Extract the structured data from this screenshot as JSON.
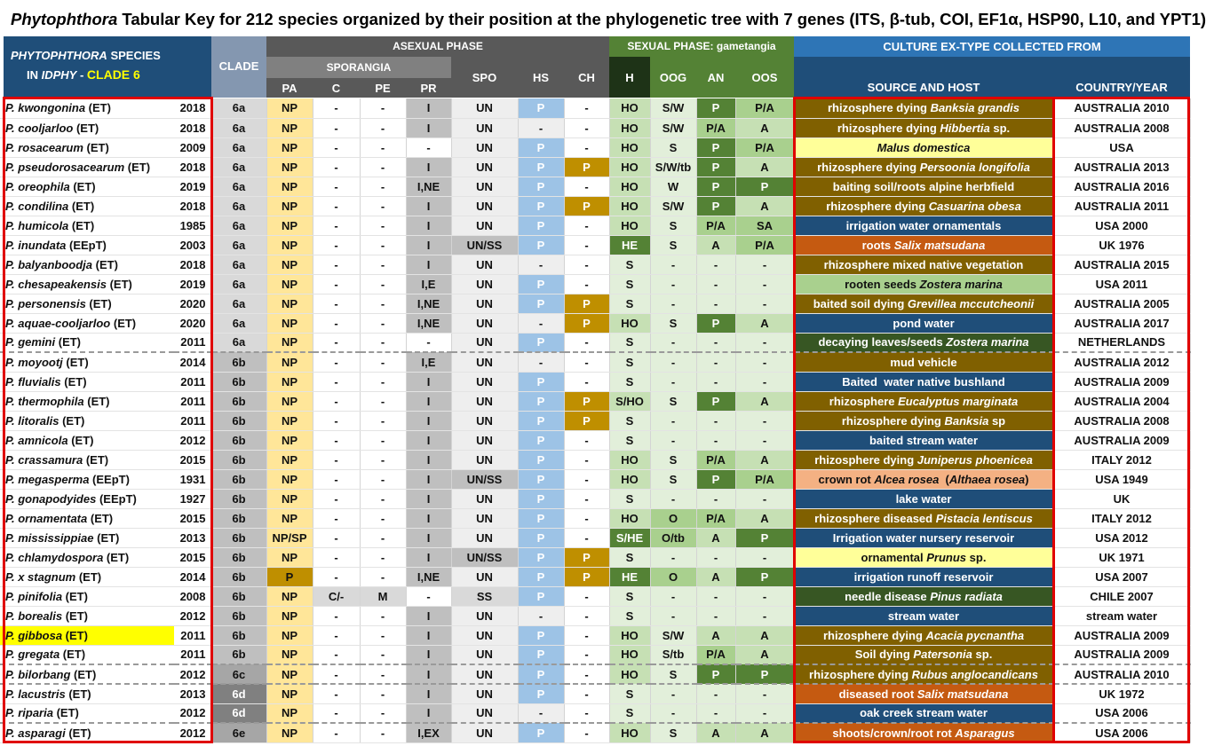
{
  "title": {
    "genus": "Phytophthora",
    "rest": " Tabular Key for 212 species organized by their position at the phylogenetic tree with 7 genes (ITS, β-tub, COI, EF1α, HSP90, L10, and YPT1)"
  },
  "header": {
    "species_line1_italic": "PHYTOPHTHORA",
    "species_line1_rest": " SPECIES",
    "species_line2_prefix": "IN ",
    "species_line2_italic": "IDPHY",
    "species_line2_dash": " - ",
    "species_clade": "CLADE 6",
    "clade": "CLADE",
    "asexual_phase": "ASEXUAL PHASE",
    "sporangia": "SPORANGIA",
    "sexual_phase": "SEXUAL PHASE: gametangia",
    "culture": "CULTURE EX-TYPE COLLECTED FROM",
    "cols": {
      "pa": "PA",
      "c": "C",
      "pe": "PE",
      "pr": "PR",
      "spo": "SPO",
      "hs": "HS",
      "ch": "CH",
      "h": "H",
      "oog": "OOG",
      "an": "AN",
      "oos": "OOS",
      "source": "SOURCE AND HOST",
      "country": "COUNTRY/YEAR"
    }
  },
  "colors": {
    "header_blue": "#1f4e79",
    "header_dark_gray": "#595959",
    "header_mid_gray": "#808080",
    "header_green": "#548235",
    "clade_header": "#8497b0",
    "sel_outline": "#e00000",
    "highlight": "#ffff00",
    "olive": "#806000",
    "navy": "#1f4e79",
    "orange": "#c55a11",
    "light_green": "#a9d08e",
    "dark_green": "#375623",
    "pale_yellow": "#ffff99",
    "salmon": "#f4b183"
  },
  "rows": [
    {
      "g": "P. kwongonina",
      "s": " (ET)",
      "year": "2018",
      "clade": "6a",
      "pa": "NP",
      "c": "-",
      "pe": "-",
      "pr": "I",
      "spo": "UN",
      "hs": "P",
      "ch": "-",
      "h": "HO",
      "oog": "S/W",
      "an": "P",
      "oos": "P/A",
      "src": [
        [
          "rhizosphere dying ",
          0
        ],
        [
          "Banksia grandis",
          1
        ]
      ],
      "sc": "olive",
      "country": "AUSTRALIA 2010"
    },
    {
      "g": "P. cooljarloo",
      "s": " (ET)",
      "year": "2018",
      "clade": "6a",
      "pa": "NP",
      "c": "-",
      "pe": "-",
      "pr": "I",
      "spo": "UN",
      "hs": "-",
      "ch": "-",
      "h": "HO",
      "oog": "S/W",
      "an": "P/A",
      "oos": "A",
      "src": [
        [
          "rhizosphere dying ",
          0
        ],
        [
          "Hibbertia",
          1
        ],
        [
          " sp.",
          0
        ]
      ],
      "sc": "olive",
      "country": "AUSTRALIA 2008"
    },
    {
      "g": "P. rosacearum",
      "s": " (ET)",
      "year": "2009",
      "clade": "6a",
      "pa": "NP",
      "c": "-",
      "pe": "-",
      "pr": "-",
      "spo": "UN",
      "hs": "P",
      "ch": "-",
      "h": "HO",
      "oog": "S",
      "an": "P",
      "oos": "P/A",
      "src": [
        [
          "Malus domestica",
          1
        ]
      ],
      "sc": "paleyellow",
      "country": "USA"
    },
    {
      "g": "P. pseudorosacearum",
      "s": " (ET)",
      "year": "2018",
      "clade": "6a",
      "pa": "NP",
      "c": "-",
      "pe": "-",
      "pr": "I",
      "spo": "UN",
      "hs": "P",
      "ch": "P",
      "h": "HO",
      "oog": "S/W/tb",
      "an": "P",
      "oos": "A",
      "src": [
        [
          "rhizosphere dying ",
          0
        ],
        [
          "Persoonia longifolia",
          1
        ]
      ],
      "sc": "olive",
      "country": "AUSTRALIA 2013"
    },
    {
      "g": "P. oreophila",
      "s": " (ET)",
      "year": "2019",
      "clade": "6a",
      "pa": "NP",
      "c": "-",
      "pe": "-",
      "pr": "I,NE",
      "spo": "UN",
      "hs": "P",
      "ch": "-",
      "h": "HO",
      "oog": "W",
      "an": "P",
      "oos": "P",
      "src": [
        [
          "baiting soil/roots alpine herbfield",
          0
        ]
      ],
      "sc": "olive",
      "country": "AUSTRALIA 2016"
    },
    {
      "g": "P. condilina",
      "s": " (ET)",
      "year": "2018",
      "clade": "6a",
      "pa": "NP",
      "c": "-",
      "pe": "-",
      "pr": "I",
      "spo": "UN",
      "hs": "P",
      "ch": "P",
      "h": "HO",
      "oog": "S/W",
      "an": "P",
      "oos": "A",
      "src": [
        [
          "rhizosphere dying ",
          0
        ],
        [
          "Casuarina obesa",
          1
        ]
      ],
      "sc": "olive",
      "country": "AUSTRALIA 2011"
    },
    {
      "g": "P. humicola",
      "s": " (ET)",
      "year": "1985",
      "clade": "6a",
      "pa": "NP",
      "c": "-",
      "pe": "-",
      "pr": "I",
      "spo": "UN",
      "hs": "P",
      "ch": "-",
      "h": "HO",
      "oog": "S",
      "an": "P/A",
      "oos": "SA",
      "src": [
        [
          "irrigation water ornamentals",
          0
        ]
      ],
      "sc": "navy",
      "country": "USA 2000"
    },
    {
      "g": "P. inundata",
      "s": " (EEpT)",
      "year": "2003",
      "clade": "6a",
      "pa": "NP",
      "c": "-",
      "pe": "-",
      "pr": "I",
      "spo": "UN/SS",
      "hs": "P",
      "ch": "-",
      "h": "HE",
      "oog": "S",
      "an": "A",
      "oos": "P/A",
      "src": [
        [
          "roots ",
          0
        ],
        [
          "Salix matsudana",
          1
        ]
      ],
      "sc": "orange",
      "country": "UK 1976"
    },
    {
      "g": "P. balyanboodja",
      "s": " (ET)",
      "year": "2018",
      "clade": "6a",
      "pa": "NP",
      "c": "-",
      "pe": "-",
      "pr": "I",
      "spo": "UN",
      "hs": "-",
      "ch": "-",
      "h": "S",
      "oog": "-",
      "an": "-",
      "oos": "-",
      "src": [
        [
          "rhizosphere mixed native vegetation",
          0
        ]
      ],
      "sc": "olive",
      "country": "AUSTRALIA 2015"
    },
    {
      "g": "P. chesapeakensis",
      "s": " (ET)",
      "year": "2019",
      "clade": "6a",
      "pa": "NP",
      "c": "-",
      "pe": "-",
      "pr": "I,E",
      "spo": "UN",
      "hs": "P",
      "ch": "-",
      "h": "S",
      "oog": "-",
      "an": "-",
      "oos": "-",
      "src": [
        [
          "rooten seeds ",
          0
        ],
        [
          "Zostera marina",
          1
        ]
      ],
      "sc": "lightgreen",
      "country": "USA 2011"
    },
    {
      "g": "P. personensis",
      "s": " (ET)",
      "year": "2020",
      "clade": "6a",
      "pa": "NP",
      "c": "-",
      "pe": "-",
      "pr": "I,NE",
      "spo": "UN",
      "hs": "P",
      "ch": "P",
      "h": "S",
      "oog": "-",
      "an": "-",
      "oos": "-",
      "src": [
        [
          "baited soil dying ",
          0
        ],
        [
          "Grevillea mccutcheonii",
          1
        ]
      ],
      "sc": "olive",
      "country": "AUSTRALIA 2005"
    },
    {
      "g": "P. aquae-cooljarloo",
      "s": " (ET)",
      "year": "2020",
      "clade": "6a",
      "pa": "NP",
      "c": "-",
      "pe": "-",
      "pr": "I,NE",
      "spo": "UN",
      "hs": "-",
      "ch": "P",
      "h": "HO",
      "oog": "S",
      "an": "P",
      "oos": "A",
      "src": [
        [
          "pond water",
          0
        ]
      ],
      "sc": "navy",
      "country": "AUSTRALIA 2017"
    },
    {
      "g": "P. gemini",
      "s": " (ET)",
      "year": "2011",
      "clade": "6a",
      "pa": "NP",
      "c": "-",
      "pe": "-",
      "pr": "-",
      "spo": "UN",
      "hs": "P",
      "ch": "-",
      "h": "S",
      "oog": "-",
      "an": "-",
      "oos": "-",
      "src": [
        [
          "decaying leaves/seeds ",
          0
        ],
        [
          "Zostera marina",
          1
        ]
      ],
      "sc": "darkgreen",
      "country": "NETHERLANDS",
      "sep": true
    },
    {
      "g": "P. moyootj",
      "s": " (ET)",
      "year": "2014",
      "clade": "6b",
      "pa": "NP",
      "c": "-",
      "pe": "-",
      "pr": "I,E",
      "spo": "UN",
      "hs": "-",
      "ch": "-",
      "h": "S",
      "oog": "-",
      "an": "-",
      "oos": "-",
      "src": [
        [
          "mud vehicle",
          0
        ]
      ],
      "sc": "olive",
      "country": "AUSTRALIA 2012"
    },
    {
      "g": "P. fluvialis",
      "s": " (ET)",
      "year": "2011",
      "clade": "6b",
      "pa": "NP",
      "c": "-",
      "pe": "-",
      "pr": "I",
      "spo": "UN",
      "hs": "P",
      "ch": "-",
      "h": "S",
      "oog": "-",
      "an": "-",
      "oos": "-",
      "src": [
        [
          "Baited  water native bushland",
          0
        ]
      ],
      "sc": "navy",
      "country": "AUSTRALIA 2009"
    },
    {
      "g": "P. thermophila",
      "s": " (ET)",
      "year": "2011",
      "clade": "6b",
      "pa": "NP",
      "c": "-",
      "pe": "-",
      "pr": "I",
      "spo": "UN",
      "hs": "P",
      "ch": "P",
      "h": "S/HO",
      "oog": "S",
      "an": "P",
      "oos": "A",
      "src": [
        [
          "rhizosphere ",
          0
        ],
        [
          "Eucalyptus marginata",
          1
        ]
      ],
      "sc": "olive",
      "country": "AUSTRALIA 2004"
    },
    {
      "g": "P. litoralis",
      "s": " (ET)",
      "year": "2011",
      "clade": "6b",
      "pa": "NP",
      "c": "-",
      "pe": "-",
      "pr": "I",
      "spo": "UN",
      "hs": "P",
      "ch": "P",
      "h": "S",
      "oog": "-",
      "an": "-",
      "oos": "-",
      "src": [
        [
          "rhizosphere dying ",
          0
        ],
        [
          "Banksia",
          1
        ],
        [
          " sp",
          0
        ]
      ],
      "sc": "olive",
      "country": "AUSTRALIA 2008"
    },
    {
      "g": "P. amnicola",
      "s": " (ET)",
      "year": "2012",
      "clade": "6b",
      "pa": "NP",
      "c": "-",
      "pe": "-",
      "pr": "I",
      "spo": "UN",
      "hs": "P",
      "ch": "-",
      "h": "S",
      "oog": "-",
      "an": "-",
      "oos": "-",
      "src": [
        [
          "baited stream water",
          0
        ]
      ],
      "sc": "navy",
      "country": "AUSTRALIA 2009"
    },
    {
      "g": "P. crassamura",
      "s": " (ET)",
      "year": "2015",
      "clade": "6b",
      "pa": "NP",
      "c": "-",
      "pe": "-",
      "pr": "I",
      "spo": "UN",
      "hs": "P",
      "ch": "-",
      "h": "HO",
      "oog": "S",
      "an": "P/A",
      "oos": "A",
      "src": [
        [
          "rhizosphere dying ",
          0
        ],
        [
          "Juniperus phoenicea",
          1
        ]
      ],
      "sc": "olive",
      "country": "ITALY 2012"
    },
    {
      "g": "P. megasperma",
      "s": " (EEpT)",
      "year": "1931",
      "clade": "6b",
      "pa": "NP",
      "c": "-",
      "pe": "-",
      "pr": "I",
      "spo": "UN/SS",
      "hs": "P",
      "ch": "-",
      "h": "HO",
      "oog": "S",
      "an": "P",
      "oos": "P/A",
      "src": [
        [
          "crown rot ",
          0
        ],
        [
          "Alcea rosea",
          1
        ],
        [
          "  (",
          0
        ],
        [
          "Althaea rosea",
          1
        ],
        [
          ")",
          0
        ]
      ],
      "sc": "salmon",
      "country": "USA 1949"
    },
    {
      "g": "P. gonapodyides",
      "s": " (EEpT)",
      "year": "1927",
      "clade": "6b",
      "pa": "NP",
      "c": "-",
      "pe": "-",
      "pr": "I",
      "spo": "UN",
      "hs": "P",
      "ch": "-",
      "h": "S",
      "oog": "-",
      "an": "-",
      "oos": "-",
      "src": [
        [
          "lake water",
          0
        ]
      ],
      "sc": "navy",
      "country": "UK"
    },
    {
      "g": "P. ornamentata",
      "s": " (ET)",
      "year": "2015",
      "clade": "6b",
      "pa": "NP",
      "c": "-",
      "pe": "-",
      "pr": "I",
      "spo": "UN",
      "hs": "P",
      "ch": "-",
      "h": "HO",
      "oog": "O",
      "an": "P/A",
      "oos": "A",
      "src": [
        [
          "rhizosphere diseased ",
          0
        ],
        [
          "Pistacia lentiscus",
          1
        ]
      ],
      "sc": "olive",
      "country": "ITALY 2012"
    },
    {
      "g": "P. mississippiae",
      "s": " (ET)",
      "year": "2013",
      "clade": "6b",
      "pa": "NP/SP",
      "c": "-",
      "pe": "-",
      "pr": "I",
      "spo": "UN",
      "hs": "P",
      "ch": "-",
      "h": "S/HE",
      "oog": "O/tb",
      "an": "A",
      "oos": "P",
      "src": [
        [
          "Irrigation water nursery reservoir",
          0
        ]
      ],
      "sc": "navy",
      "country": "USA 2012"
    },
    {
      "g": "P. chlamydospora",
      "s": " (ET)",
      "year": "2015",
      "clade": "6b",
      "pa": "NP",
      "c": "-",
      "pe": "-",
      "pr": "I",
      "spo": "UN/SS",
      "hs": "P",
      "ch": "P",
      "h": "S",
      "oog": "-",
      "an": "-",
      "oos": "-",
      "src": [
        [
          "ornamental ",
          0
        ],
        [
          "Prunus",
          1
        ],
        [
          " sp.",
          0
        ]
      ],
      "sc": "paleyellow",
      "country": "UK 1971"
    },
    {
      "g": "P. x stagnum",
      "s": " (ET)",
      "year": "2014",
      "clade": "6b",
      "pa": "P",
      "c": "-",
      "pe": "-",
      "pr": "I,NE",
      "spo": "UN",
      "hs": "P",
      "ch": "P",
      "h": "HE",
      "oog": "O",
      "an": "A",
      "oos": "P",
      "src": [
        [
          "irrigation runoff reservoir",
          0
        ]
      ],
      "sc": "navy",
      "country": "USA 2007"
    },
    {
      "g": "P. pinifolia",
      "s": " (ET)",
      "year": "2008",
      "clade": "6b",
      "pa": "NP",
      "c": "C/-",
      "pe": "M",
      "pr": "-",
      "spo": "SS",
      "hs": "P",
      "ch": "-",
      "h": "S",
      "oog": "-",
      "an": "-",
      "oos": "-",
      "src": [
        [
          "needle disease ",
          0
        ],
        [
          "Pinus radiata",
          1
        ]
      ],
      "sc": "darkgreen",
      "country": "CHILE 2007"
    },
    {
      "g": "P. borealis",
      "s": " (ET)",
      "year": "2012",
      "clade": "6b",
      "pa": "NP",
      "c": "-",
      "pe": "-",
      "pr": "I",
      "spo": "UN",
      "hs": "-",
      "ch": "-",
      "h": "S",
      "oog": "-",
      "an": "-",
      "oos": "-",
      "src": [
        [
          "stream water",
          0
        ]
      ],
      "sc": "navy",
      "country": "stream water"
    },
    {
      "g": "P. gibbosa",
      "s": " (ET)",
      "year": "2011",
      "clade": "6b",
      "pa": "NP",
      "c": "-",
      "pe": "-",
      "pr": "I",
      "spo": "UN",
      "hs": "P",
      "ch": "-",
      "h": "HO",
      "oog": "S/W",
      "an": "A",
      "oos": "A",
      "src": [
        [
          "rhizosphere dying ",
          0
        ],
        [
          "Acacia pycnantha",
          1
        ]
      ],
      "sc": "olive",
      "country": "AUSTRALIA 2009",
      "highlight": true
    },
    {
      "g": "P. gregata",
      "s": " (ET)",
      "year": "2011",
      "clade": "6b",
      "pa": "NP",
      "c": "-",
      "pe": "-",
      "pr": "I",
      "spo": "UN",
      "hs": "P",
      "ch": "-",
      "h": "HO",
      "oog": "S/tb",
      "an": "P/A",
      "oos": "A",
      "src": [
        [
          "Soil dying ",
          0
        ],
        [
          "Patersonia",
          1
        ],
        [
          " sp.",
          0
        ]
      ],
      "sc": "olive",
      "country": "AUSTRALIA 2009",
      "sep": true
    },
    {
      "g": "P. bilorbang",
      "s": " (ET)",
      "year": "2012",
      "clade": "6c",
      "pa": "NP",
      "c": "-",
      "pe": "-",
      "pr": "I",
      "spo": "UN",
      "hs": "P",
      "ch": "-",
      "h": "HO",
      "oog": "S",
      "an": "P",
      "oos": "P",
      "src": [
        [
          "rhizosphere dying ",
          0
        ],
        [
          "Rubus anglocandicans",
          1
        ]
      ],
      "sc": "olive",
      "country": "AUSTRALIA 2010",
      "sep": true
    },
    {
      "g": "P. lacustris",
      "s": " (ET)",
      "year": "2013",
      "clade": "6d",
      "pa": "NP",
      "c": "-",
      "pe": "-",
      "pr": "I",
      "spo": "UN",
      "hs": "P",
      "ch": "-",
      "h": "S",
      "oog": "-",
      "an": "-",
      "oos": "-",
      "src": [
        [
          "diseased root ",
          0
        ],
        [
          "Salix matsudana",
          1
        ]
      ],
      "sc": "orange",
      "country": "UK 1972"
    },
    {
      "g": "P. riparia",
      "s": " (ET)",
      "year": "2012",
      "clade": "6d",
      "pa": "NP",
      "c": "-",
      "pe": "-",
      "pr": "I",
      "spo": "UN",
      "hs": "-",
      "ch": "-",
      "h": "S",
      "oog": "-",
      "an": "-",
      "oos": "-",
      "src": [
        [
          "oak creek stream water",
          0
        ]
      ],
      "sc": "navy",
      "country": "USA 2006",
      "sep": true
    },
    {
      "g": "P. asparagi",
      "s": " (ET)",
      "year": "2012",
      "clade": "6e",
      "pa": "NP",
      "c": "-",
      "pe": "-",
      "pr": "I,EX",
      "spo": "UN",
      "hs": "P",
      "ch": "-",
      "h": "HO",
      "oog": "S",
      "an": "A",
      "oos": "A",
      "src": [
        [
          "shoots/crown/root rot ",
          0
        ],
        [
          "Asparagus",
          1
        ]
      ],
      "sc": "orange",
      "country": "USA 2006"
    }
  ]
}
